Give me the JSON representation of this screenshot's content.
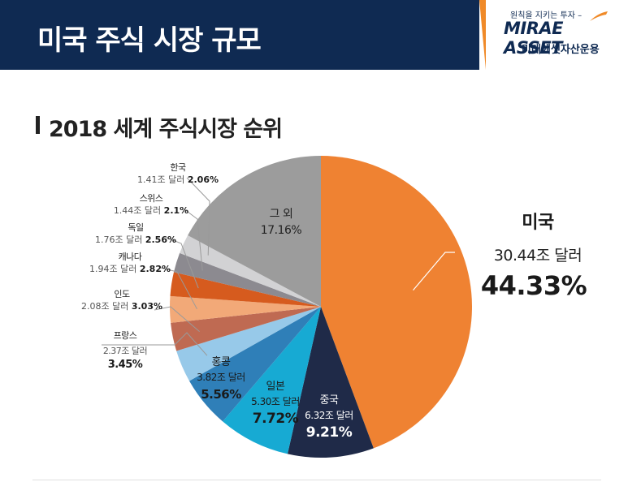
{
  "header": {
    "title": "미국 주식 시장 규모",
    "navy": "#0f2a52",
    "accent": "#f08a28"
  },
  "logo": {
    "tagline": "원칙을 지키는 투자 –",
    "brand": "MIRAE ASSET",
    "brand_kr": "미래에셋자산운용"
  },
  "subtitle": "2018 세계 주식시장 순위",
  "chart_data": {
    "type": "pie",
    "title": "2018 세계 주식시장 순위",
    "start": "12 o'clock",
    "direction": "clockwise",
    "slices": [
      {
        "name": "미국",
        "amount": "30.44조 달러",
        "value": 44.33,
        "pct": "44.33%",
        "color": "#ef8232"
      },
      {
        "name": "중국",
        "amount": "6.32조 달러",
        "value": 9.21,
        "pct": "9.21%",
        "color": "#1f2a48"
      },
      {
        "name": "일본",
        "amount": "5.30조 달러",
        "value": 7.72,
        "pct": "7.72%",
        "color": "#17aad3"
      },
      {
        "name": "홍콩",
        "amount": "3.82조 달러",
        "value": 5.56,
        "pct": "5.56%",
        "color": "#2f7fb8"
      },
      {
        "name": "프랑스",
        "amount": "2.37조 달러",
        "value": 3.45,
        "pct": "3.45%",
        "color": "#97c9e9"
      },
      {
        "name": "인도",
        "amount": "2.08조 달러",
        "value": 3.03,
        "pct": "3.03%",
        "color": "#bf6a52"
      },
      {
        "name": "캐나다",
        "amount": "1.94조 달러",
        "value": 2.82,
        "pct": "2.82%",
        "color": "#f2a978"
      },
      {
        "name": "독일",
        "amount": "1.76조 달러",
        "value": 2.56,
        "pct": "2.56%",
        "color": "#d65b1e"
      },
      {
        "name": "스위스",
        "amount": "1.44조 달러",
        "value": 2.1,
        "pct": "2.1%",
        "color": "#8c8a90"
      },
      {
        "name": "한국",
        "amount": "1.41조 달러",
        "value": 2.06,
        "pct": "2.06%",
        "color": "#d2d2d4"
      },
      {
        "name": "그 외",
        "amount": "",
        "value": 17.16,
        "pct": "17.16%",
        "color": "#9c9c9c"
      }
    ]
  }
}
